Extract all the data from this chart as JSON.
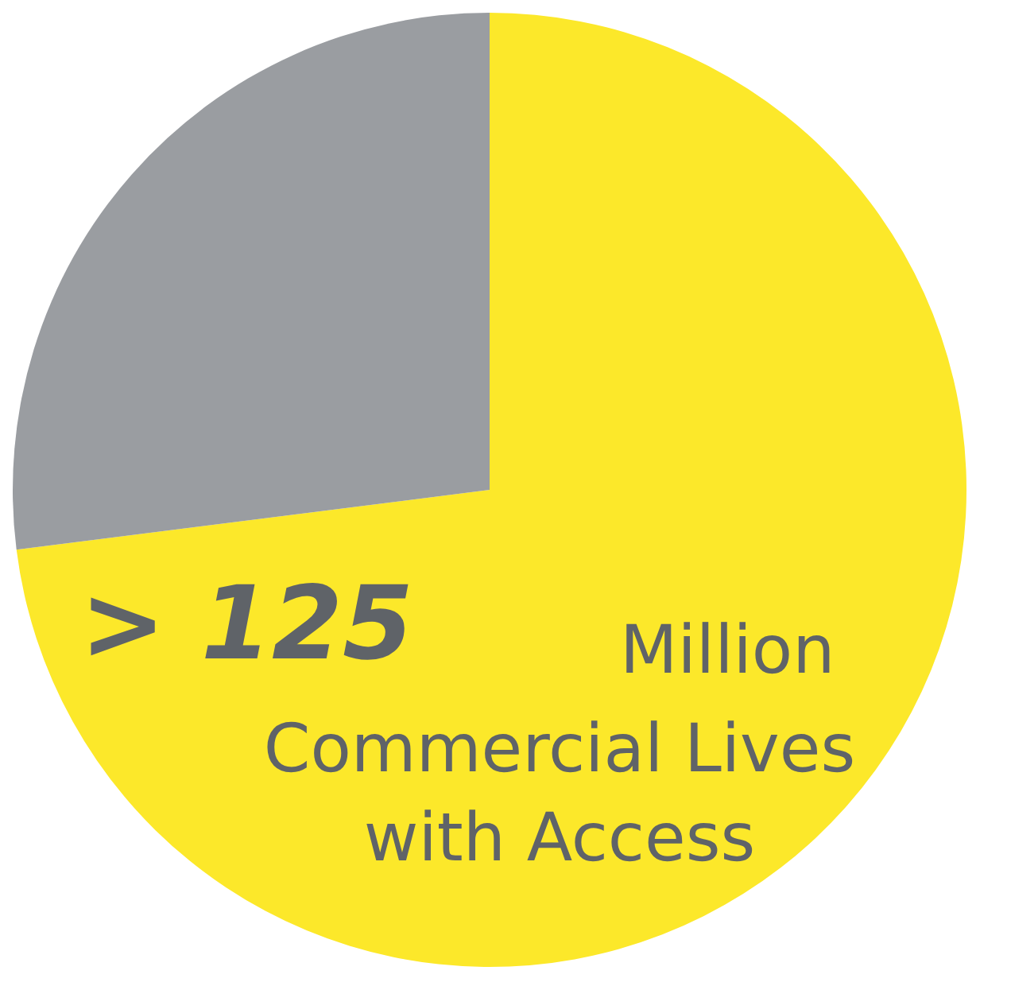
{
  "chart_data": {
    "type": "pie",
    "categories": [
      null,
      null
    ],
    "values": [
      73,
      27
    ],
    "colors": [
      "#fce82a",
      "#9a9da1"
    ],
    "annotations": [
      "> 125",
      "Million",
      "Commercial Lives",
      "with Access"
    ]
  }
}
